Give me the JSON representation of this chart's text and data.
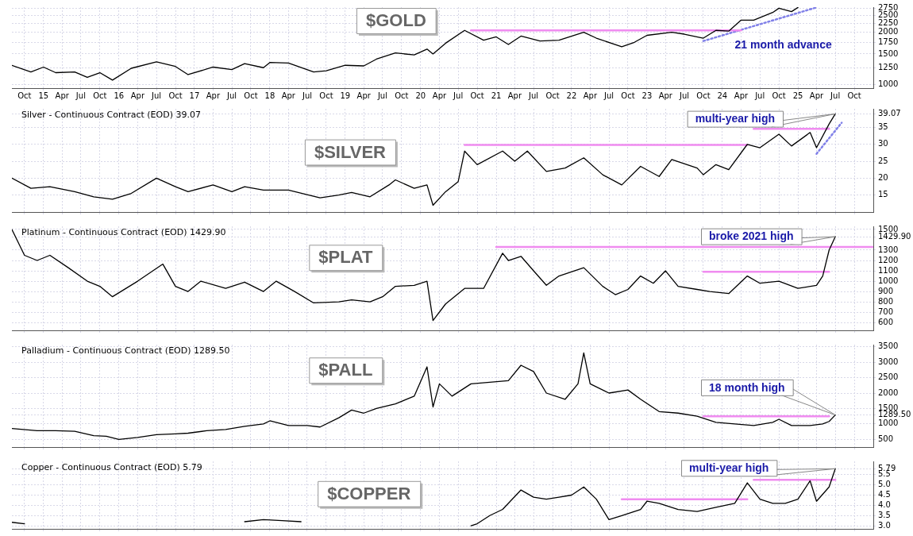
{
  "chart_data": [
    {
      "type": "line",
      "marker": "none",
      "grid": true,
      "log": true,
      "xlim": [
        "2014-08",
        "2026-01"
      ],
      "ylim": [
        953,
        2790
      ],
      "yticks": [
        1000,
        1250,
        1500,
        1750,
        2000,
        2250,
        2500,
        2750
      ],
      "xticks": [
        {
          "value": "2014-10",
          "label": "Oct"
        },
        {
          "value": "2015-01",
          "label": "15"
        },
        {
          "value": "2015-04",
          "label": "Apr"
        },
        {
          "value": "2015-07",
          "label": "Jul"
        },
        {
          "value": "2015-10",
          "label": "Oct"
        },
        {
          "value": "2016-01",
          "label": "16"
        },
        {
          "value": "2016-04",
          "label": "Apr"
        },
        {
          "value": "2016-07",
          "label": "Jul"
        },
        {
          "value": "2016-10",
          "label": "Oct"
        },
        {
          "value": "2017-01",
          "label": "17"
        },
        {
          "value": "2017-04",
          "label": "Apr"
        },
        {
          "value": "2017-07",
          "label": "Jul"
        },
        {
          "value": "2017-10",
          "label": "Oct"
        },
        {
          "value": "2018-01",
          "label": "18"
        },
        {
          "value": "2018-04",
          "label": "Apr"
        },
        {
          "value": "2018-07",
          "label": "Jul"
        },
        {
          "value": "2018-10",
          "label": "Oct"
        },
        {
          "value": "2019-01",
          "label": "19"
        },
        {
          "value": "2019-04",
          "label": "Apr"
        },
        {
          "value": "2019-07",
          "label": "Jul"
        },
        {
          "value": "2019-10",
          "label": "Oct"
        },
        {
          "value": "2020-01",
          "label": "20"
        },
        {
          "value": "2020-04",
          "label": "Apr"
        },
        {
          "value": "2020-07",
          "label": "Jul"
        },
        {
          "value": "2020-10",
          "label": "Oct"
        },
        {
          "value": "2021-01",
          "label": "21"
        },
        {
          "value": "2021-04",
          "label": "Apr"
        },
        {
          "value": "2021-07",
          "label": "Jul"
        },
        {
          "value": "2021-10",
          "label": "Oct"
        },
        {
          "value": "2022-01",
          "label": "22"
        },
        {
          "value": "2022-04",
          "label": "Apr"
        },
        {
          "value": "2022-07",
          "label": "Jul"
        },
        {
          "value": "2022-10",
          "label": "Oct"
        },
        {
          "value": "2023-01",
          "label": "23"
        },
        {
          "value": "2023-04",
          "label": "Apr"
        },
        {
          "value": "2023-07",
          "label": "Jul"
        },
        {
          "value": "2023-10",
          "label": "Oct"
        },
        {
          "value": "2024-01",
          "label": "24"
        },
        {
          "value": "2024-04",
          "label": "Apr"
        },
        {
          "value": "2024-07",
          "label": "Jul"
        },
        {
          "value": "2024-10",
          "label": "Oct"
        },
        {
          "value": "2025-01",
          "label": "25"
        },
        {
          "value": "2025-04",
          "label": "Apr"
        },
        {
          "value": "2025-07",
          "label": "Jul"
        },
        {
          "value": "2025-10",
          "label": "Oct"
        }
      ],
      "annotations": [
        "$GOLD",
        "21 month advance"
      ],
      "series": [
        {
          "color": "#000000",
          "x": [
            "2014-08",
            "2014-11",
            "2015-01",
            "2015-03",
            "2015-06",
            "2015-08",
            "2015-10",
            "2015-12",
            "2016-03",
            "2016-07",
            "2016-10",
            "2016-12",
            "2017-04",
            "2017-07",
            "2017-09",
            "2017-12",
            "2018-01",
            "2018-04",
            "2018-08",
            "2018-10",
            "2019-01",
            "2019-04",
            "2019-06",
            "2019-09",
            "2019-12",
            "2020-02",
            "2020-03",
            "2020-05",
            "2020-08",
            "2020-11",
            "2021-01",
            "2021-03",
            "2021-05",
            "2021-08",
            "2021-11",
            "2022-03",
            "2022-05",
            "2022-09",
            "2022-11",
            "2023-01",
            "2023-05",
            "2023-07",
            "2023-10",
            "2023-12",
            "2024-02",
            "2024-04",
            "2024-06",
            "2024-09",
            "2024-10",
            "2024-12",
            "2025-01"
          ],
          "values": [
            1290,
            1180,
            1260,
            1170,
            1180,
            1100,
            1170,
            1060,
            1240,
            1350,
            1270,
            1140,
            1260,
            1220,
            1320,
            1250,
            1340,
            1330,
            1180,
            1200,
            1290,
            1280,
            1400,
            1520,
            1480,
            1600,
            1500,
            1730,
            2050,
            1800,
            1880,
            1700,
            1900,
            1780,
            1800,
            2000,
            1850,
            1650,
            1750,
            1920,
            2000,
            1950,
            1850,
            2050,
            2030,
            2350,
            2350,
            2600,
            2750,
            2630,
            2780
          ]
        },
        {
          "color": "#f08cf0",
          "x": [
            "2020-09",
            "2024-04"
          ],
          "values": [
            2050,
            2050
          ]
        },
        {
          "color": "#8080e8",
          "line_style": "dotted",
          "x": [
            "2023-10",
            "2025-04"
          ],
          "values": [
            1780,
            2780
          ]
        }
      ]
    },
    {
      "type": "line",
      "marker": "none",
      "grid": true,
      "tick_labels": "y",
      "subtitle": "Silver - Continuous Contract (EOD) 39.07",
      "xlim": [
        "2014-08",
        "2026-01"
      ],
      "ylim": [
        10,
        40.5
      ],
      "yticks": [
        15,
        20,
        25,
        30,
        35,
        39.07
      ],
      "xticks": [
        {
          "value": "2014-10",
          "label": null
        },
        {
          "value": "2015-01",
          "label": null
        },
        {
          "value": "2015-04",
          "label": null
        },
        {
          "value": "2015-07",
          "label": null
        },
        {
          "value": "2015-10",
          "label": null
        },
        {
          "value": "2016-01",
          "label": null
        },
        {
          "value": "2016-04",
          "label": null
        },
        {
          "value": "2016-07",
          "label": null
        },
        {
          "value": "2016-10",
          "label": null
        },
        {
          "value": "2017-01",
          "label": null
        },
        {
          "value": "2017-04",
          "label": null
        },
        {
          "value": "2017-07",
          "label": null
        },
        {
          "value": "2017-10",
          "label": null
        },
        {
          "value": "2018-01",
          "label": null
        },
        {
          "value": "2018-04",
          "label": null
        },
        {
          "value": "2018-07",
          "label": null
        },
        {
          "value": "2018-10",
          "label": null
        },
        {
          "value": "2019-01",
          "label": null
        },
        {
          "value": "2019-04",
          "label": null
        },
        {
          "value": "2019-07",
          "label": null
        },
        {
          "value": "2019-10",
          "label": null
        },
        {
          "value": "2020-01",
          "label": null
        },
        {
          "value": "2020-04",
          "label": null
        },
        {
          "value": "2020-07",
          "label": null
        },
        {
          "value": "2020-10",
          "label": null
        },
        {
          "value": "2021-01",
          "label": null
        },
        {
          "value": "2021-04",
          "label": null
        },
        {
          "value": "2021-07",
          "label": null
        },
        {
          "value": "2021-10",
          "label": null
        },
        {
          "value": "2022-01",
          "label": null
        },
        {
          "value": "2022-04",
          "label": null
        },
        {
          "value": "2022-07",
          "label": null
        },
        {
          "value": "2022-10",
          "label": null
        },
        {
          "value": "2023-01",
          "label": null
        },
        {
          "value": "2023-04",
          "label": null
        },
        {
          "value": "2023-07",
          "label": null
        },
        {
          "value": "2023-10",
          "label": null
        },
        {
          "value": "2024-01",
          "label": null
        },
        {
          "value": "2024-04",
          "label": null
        },
        {
          "value": "2024-07",
          "label": null
        },
        {
          "value": "2024-10",
          "label": null
        },
        {
          "value": "2025-01",
          "label": null
        },
        {
          "value": "2025-04",
          "label": null
        },
        {
          "value": "2025-07",
          "label": null
        },
        {
          "value": "2025-10",
          "label": null
        }
      ],
      "annotations": [
        "$SILVER",
        "multi-year high"
      ],
      "series": [
        {
          "color": "#000000",
          "x": [
            "2014-08",
            "2014-11",
            "2015-02",
            "2015-06",
            "2015-09",
            "2015-12",
            "2016-03",
            "2016-07",
            "2016-10",
            "2016-12",
            "2017-04",
            "2017-07",
            "2017-09",
            "2017-12",
            "2018-04",
            "2018-09",
            "2018-12",
            "2019-02",
            "2019-05",
            "2019-08",
            "2019-09",
            "2019-12",
            "2020-02",
            "2020-03",
            "2020-05",
            "2020-07",
            "2020-08",
            "2020-10",
            "2021-02",
            "2021-04",
            "2021-06",
            "2021-09",
            "2021-12",
            "2022-03",
            "2022-06",
            "2022-09",
            "2022-12",
            "2023-03",
            "2023-05",
            "2023-09",
            "2023-10",
            "2023-12",
            "2024-02",
            "2024-05",
            "2024-07",
            "2024-10",
            "2024-12",
            "2025-03",
            "2025-04",
            "2025-06",
            "2025-07"
          ],
          "values": [
            20,
            17,
            17.5,
            16,
            14.5,
            13.8,
            15.5,
            20,
            17.5,
            16,
            18,
            16,
            17.5,
            16.5,
            16.5,
            14.2,
            15,
            15.8,
            14.5,
            18,
            19.5,
            17,
            18,
            12,
            16,
            19,
            28,
            24,
            28,
            25,
            28,
            22,
            23,
            26,
            21,
            18,
            23.5,
            20.5,
            25.5,
            23,
            21,
            24,
            22.5,
            30,
            29,
            33,
            29.5,
            33.5,
            29,
            36,
            39
          ]
        },
        {
          "color": "#f08cf0",
          "x": [
            "2020-08",
            "2024-05"
          ],
          "values": [
            29.8,
            29.8
          ]
        },
        {
          "color": "#f08cf0",
          "x": [
            "2024-06",
            "2025-06"
          ],
          "values": [
            34.6,
            34.6
          ]
        },
        {
          "color": "#8080e8",
          "line_style": "dotted",
          "x": [
            "2025-04",
            "2025-08"
          ],
          "values": [
            27.2,
            36.4
          ]
        }
      ]
    },
    {
      "type": "line",
      "marker": "none",
      "grid": true,
      "tick_labels": "y",
      "subtitle": "Platinum - Continuous Contract (EOD) 1429.90",
      "xlim": [
        "2014-08",
        "2026-01"
      ],
      "ylim": [
        525,
        1530
      ],
      "yticks": [
        600,
        700,
        800,
        900,
        1000,
        1100,
        1200,
        1300,
        {
          "value": 1429.9,
          "label": "1429.90"
        },
        1500
      ],
      "xticks": [
        {
          "value": "2014-10",
          "label": null
        },
        {
          "value": "2015-01",
          "label": null
        },
        {
          "value": "2015-04",
          "label": null
        },
        {
          "value": "2015-07",
          "label": null
        },
        {
          "value": "2015-10",
          "label": null
        },
        {
          "value": "2016-01",
          "label": null
        },
        {
          "value": "2016-04",
          "label": null
        },
        {
          "value": "2016-07",
          "label": null
        },
        {
          "value": "2016-10",
          "label": null
        },
        {
          "value": "2017-01",
          "label": null
        },
        {
          "value": "2017-04",
          "label": null
        },
        {
          "value": "2017-07",
          "label": null
        },
        {
          "value": "2017-10",
          "label": null
        },
        {
          "value": "2018-01",
          "label": null
        },
        {
          "value": "2018-04",
          "label": null
        },
        {
          "value": "2018-07",
          "label": null
        },
        {
          "value": "2018-10",
          "label": null
        },
        {
          "value": "2019-01",
          "label": null
        },
        {
          "value": "2019-04",
          "label": null
        },
        {
          "value": "2019-07",
          "label": null
        },
        {
          "value": "2019-10",
          "label": null
        },
        {
          "value": "2020-01",
          "label": null
        },
        {
          "value": "2020-04",
          "label": null
        },
        {
          "value": "2020-07",
          "label": null
        },
        {
          "value": "2020-10",
          "label": null
        },
        {
          "value": "2021-01",
          "label": null
        },
        {
          "value": "2021-04",
          "label": null
        },
        {
          "value": "2021-07",
          "label": null
        },
        {
          "value": "2021-10",
          "label": null
        },
        {
          "value": "2022-01",
          "label": null
        },
        {
          "value": "2022-04",
          "label": null
        },
        {
          "value": "2022-07",
          "label": null
        },
        {
          "value": "2022-10",
          "label": null
        },
        {
          "value": "2023-01",
          "label": null
        },
        {
          "value": "2023-04",
          "label": null
        },
        {
          "value": "2023-07",
          "label": null
        },
        {
          "value": "2023-10",
          "label": null
        },
        {
          "value": "2024-01",
          "label": null
        },
        {
          "value": "2024-04",
          "label": null
        },
        {
          "value": "2024-07",
          "label": null
        },
        {
          "value": "2024-10",
          "label": null
        },
        {
          "value": "2025-01",
          "label": null
        },
        {
          "value": "2025-04",
          "label": null
        },
        {
          "value": "2025-07",
          "label": null
        },
        {
          "value": "2025-10",
          "label": null
        }
      ],
      "annotations": [
        "$PLAT",
        "broke 2021 high"
      ],
      "series": [
        {
          "color": "#000000",
          "x": [
            "2014-08",
            "2014-10",
            "2014-12",
            "2015-02",
            "2015-05",
            "2015-08",
            "2015-10",
            "2015-12",
            "2016-04",
            "2016-08",
            "2016-10",
            "2016-12",
            "2017-02",
            "2017-06",
            "2017-09",
            "2017-12",
            "2018-02",
            "2018-05",
            "2018-08",
            "2018-12",
            "2019-02",
            "2019-05",
            "2019-07",
            "2019-09",
            "2019-12",
            "2020-02",
            "2020-03",
            "2020-05",
            "2020-08",
            "2020-11",
            "2021-02",
            "2021-03",
            "2021-05",
            "2021-07",
            "2021-09",
            "2021-11",
            "2022-03",
            "2022-06",
            "2022-08",
            "2022-10",
            "2022-12",
            "2023-02",
            "2023-04",
            "2023-06",
            "2023-09",
            "2023-11",
            "2024-02",
            "2024-05",
            "2024-07",
            "2024-10",
            "2025-01",
            "2025-04",
            "2025-05",
            "2025-06",
            "2025-07"
          ],
          "values": [
            1500,
            1250,
            1200,
            1250,
            1130,
            1000,
            950,
            850,
            1000,
            1165,
            950,
            900,
            1000,
            930,
            990,
            900,
            1000,
            900,
            790,
            800,
            820,
            800,
            850,
            950,
            960,
            1000,
            620,
            780,
            930,
            930,
            1270,
            1200,
            1240,
            1100,
            960,
            1050,
            1130,
            950,
            870,
            920,
            1050,
            980,
            1100,
            950,
            920,
            900,
            880,
            1050,
            980,
            1000,
            930,
            960,
            1050,
            1300,
            1430
          ]
        },
        {
          "color": "#f08cf0",
          "x": [
            "2021-01",
            "2026-01"
          ],
          "values": [
            1330,
            1330
          ]
        },
        {
          "color": "#f08cf0",
          "x": [
            "2023-10",
            "2025-06"
          ],
          "values": [
            1090,
            1090
          ]
        }
      ]
    },
    {
      "type": "line",
      "marker": "none",
      "grid": true,
      "tick_labels": "y",
      "subtitle": "Palladium - Continuous Contract (EOD) 1289.50",
      "xlim": [
        "2014-08",
        "2026-01"
      ],
      "ylim": [
        250,
        3570
      ],
      "yticks": [
        500,
        1000,
        {
          "value": 1289.5,
          "label": "1289.50"
        },
        1500,
        2000,
        2500,
        3000,
        3500
      ],
      "xticks": [
        {
          "value": "2014-10",
          "label": null
        },
        {
          "value": "2015-01",
          "label": null
        },
        {
          "value": "2015-04",
          "label": null
        },
        {
          "value": "2015-07",
          "label": null
        },
        {
          "value": "2015-10",
          "label": null
        },
        {
          "value": "2016-01",
          "label": null
        },
        {
          "value": "2016-04",
          "label": null
        },
        {
          "value": "2016-07",
          "label": null
        },
        {
          "value": "2016-10",
          "label": null
        },
        {
          "value": "2017-01",
          "label": null
        },
        {
          "value": "2017-04",
          "label": null
        },
        {
          "value": "2017-07",
          "label": null
        },
        {
          "value": "2017-10",
          "label": null
        },
        {
          "value": "2018-01",
          "label": null
        },
        {
          "value": "2018-04",
          "label": null
        },
        {
          "value": "2018-07",
          "label": null
        },
        {
          "value": "2018-10",
          "label": null
        },
        {
          "value": "2019-01",
          "label": null
        },
        {
          "value": "2019-04",
          "label": null
        },
        {
          "value": "2019-07",
          "label": null
        },
        {
          "value": "2019-10",
          "label": null
        },
        {
          "value": "2020-01",
          "label": null
        },
        {
          "value": "2020-04",
          "label": null
        },
        {
          "value": "2020-07",
          "label": null
        },
        {
          "value": "2020-10",
          "label": null
        },
        {
          "value": "2021-01",
          "label": null
        },
        {
          "value": "2021-04",
          "label": null
        },
        {
          "value": "2021-07",
          "label": null
        },
        {
          "value": "2021-10",
          "label": null
        },
        {
          "value": "2022-01",
          "label": null
        },
        {
          "value": "2022-04",
          "label": null
        },
        {
          "value": "2022-07",
          "label": null
        },
        {
          "value": "2022-10",
          "label": null
        },
        {
          "value": "2023-01",
          "label": null
        },
        {
          "value": "2023-04",
          "label": null
        },
        {
          "value": "2023-07",
          "label": null
        },
        {
          "value": "2023-10",
          "label": null
        },
        {
          "value": "2024-01",
          "label": null
        },
        {
          "value": "2024-04",
          "label": null
        },
        {
          "value": "2024-07",
          "label": null
        },
        {
          "value": "2024-10",
          "label": null
        },
        {
          "value": "2025-01",
          "label": null
        },
        {
          "value": "2025-04",
          "label": null
        },
        {
          "value": "2025-07",
          "label": null
        },
        {
          "value": "2025-10",
          "label": null
        }
      ],
      "annotations": [
        "$PALL",
        "18 month high"
      ],
      "series": [
        {
          "color": "#000000",
          "x": [
            "2014-08",
            "2014-12",
            "2015-03",
            "2015-06",
            "2015-09",
            "2015-11",
            "2016-01",
            "2016-04",
            "2016-07",
            "2016-10",
            "2016-12",
            "2017-03",
            "2017-06",
            "2017-09",
            "2017-12",
            "2018-01",
            "2018-04",
            "2018-07",
            "2018-09",
            "2018-12",
            "2019-02",
            "2019-04",
            "2019-06",
            "2019-09",
            "2019-12",
            "2020-02",
            "2020-03",
            "2020-04",
            "2020-06",
            "2020-09",
            "2020-12",
            "2021-03",
            "2021-05",
            "2021-07",
            "2021-09",
            "2021-12",
            "2022-02",
            "2022-03",
            "2022-04",
            "2022-07",
            "2022-10",
            "2022-12",
            "2023-03",
            "2023-06",
            "2023-09",
            "2023-12",
            "2024-03",
            "2024-06",
            "2024-09",
            "2024-10",
            "2024-12",
            "2025-03",
            "2025-05",
            "2025-06",
            "2025-07"
          ],
          "values": [
            850,
            780,
            780,
            760,
            620,
            600,
            500,
            560,
            650,
            680,
            700,
            780,
            820,
            920,
            1000,
            1100,
            950,
            950,
            900,
            1200,
            1450,
            1350,
            1500,
            1650,
            1900,
            2850,
            1550,
            2300,
            1900,
            2300,
            2350,
            2400,
            2900,
            2700,
            2000,
            1800,
            2300,
            3300,
            2300,
            2000,
            2100,
            1800,
            1400,
            1350,
            1250,
            1050,
            1000,
            950,
            1050,
            1150,
            950,
            950,
            1000,
            1080,
            1290
          ]
        },
        {
          "color": "#f08cf0",
          "x": [
            "2023-10",
            "2025-06"
          ],
          "values": [
            1250,
            1250
          ]
        }
      ]
    },
    {
      "type": "line",
      "marker": "none",
      "grid": true,
      "tick_labels": "y",
      "subtitle": "Copper - Continuous Contract (EOD) 5.79",
      "xlim": [
        "2014-08",
        "2026-01"
      ],
      "ylim": [
        2.85,
        6.15
      ],
      "yticks": [
        {
          "value": 3,
          "label": "3.0"
        },
        {
          "value": 3.5,
          "label": "3.5"
        },
        {
          "value": 4,
          "label": "4.0"
        },
        {
          "value": 4.5,
          "label": "4.5"
        },
        {
          "value": 5,
          "label": "5.0"
        },
        {
          "value": 5.5,
          "label": "5.5"
        },
        5.79
      ],
      "xticks": [
        {
          "value": "2014-10",
          "label": null
        },
        {
          "value": "2015-01",
          "label": null
        },
        {
          "value": "2015-04",
          "label": null
        },
        {
          "value": "2015-07",
          "label": null
        },
        {
          "value": "2015-10",
          "label": null
        },
        {
          "value": "2016-01",
          "label": null
        },
        {
          "value": "2016-04",
          "label": null
        },
        {
          "value": "2016-07",
          "label": null
        },
        {
          "value": "2016-10",
          "label": null
        },
        {
          "value": "2017-01",
          "label": null
        },
        {
          "value": "2017-04",
          "label": null
        },
        {
          "value": "2017-07",
          "label": null
        },
        {
          "value": "2017-10",
          "label": null
        },
        {
          "value": "2018-01",
          "label": null
        },
        {
          "value": "2018-04",
          "label": null
        },
        {
          "value": "2018-07",
          "label": null
        },
        {
          "value": "2018-10",
          "label": null
        },
        {
          "value": "2019-01",
          "label": null
        },
        {
          "value": "2019-04",
          "label": null
        },
        {
          "value": "2019-07",
          "label": null
        },
        {
          "value": "2019-10",
          "label": null
        },
        {
          "value": "2020-01",
          "label": null
        },
        {
          "value": "2020-04",
          "label": null
        },
        {
          "value": "2020-07",
          "label": null
        },
        {
          "value": "2020-10",
          "label": null
        },
        {
          "value": "2021-01",
          "label": null
        },
        {
          "value": "2021-04",
          "label": null
        },
        {
          "value": "2021-07",
          "label": null
        },
        {
          "value": "2021-10",
          "label": null
        },
        {
          "value": "2022-01",
          "label": null
        },
        {
          "value": "2022-04",
          "label": null
        },
        {
          "value": "2022-07",
          "label": null
        },
        {
          "value": "2022-10",
          "label": null
        },
        {
          "value": "2023-01",
          "label": null
        },
        {
          "value": "2023-04",
          "label": null
        },
        {
          "value": "2023-07",
          "label": null
        },
        {
          "value": "2023-10",
          "label": null
        },
        {
          "value": "2024-01",
          "label": null
        },
        {
          "value": "2024-04",
          "label": null
        },
        {
          "value": "2024-07",
          "label": null
        },
        {
          "value": "2024-10",
          "label": null
        },
        {
          "value": "2025-01",
          "label": null
        },
        {
          "value": "2025-04",
          "label": null
        },
        {
          "value": "2025-07",
          "label": null
        },
        {
          "value": "2025-10",
          "label": null
        }
      ],
      "annotations": [
        "$COPPER",
        "multi-year high"
      ],
      "series": [
        {
          "color": "#000000",
          "x": [
            "2014-08",
            "2014-10",
            "2014-11",
            "2017-09",
            "2017-12",
            "2018-03",
            "2018-06",
            "2018-07",
            "2020-09",
            "2020-10",
            "2020-12",
            "2021-02",
            "2021-05",
            "2021-07",
            "2021-09",
            "2021-11",
            "2022-01",
            "2022-03",
            "2022-05",
            "2022-07",
            "2022-09",
            "2022-12",
            "2023-01",
            "2023-03",
            "2023-06",
            "2023-09",
            "2023-12",
            "2024-03",
            "2024-05",
            "2024-07",
            "2024-09",
            "2024-11",
            "2025-01",
            "2025-03",
            "2025-04",
            "2025-06",
            "2025-07"
          ],
          "values": [
            3.17,
            3.1,
            null,
            3.2,
            3.3,
            3.25,
            3.2,
            null,
            3.0,
            3.1,
            3.5,
            3.8,
            4.75,
            4.4,
            4.3,
            4.4,
            4.5,
            4.9,
            4.3,
            3.3,
            3.5,
            3.8,
            4.2,
            4.1,
            3.8,
            3.7,
            3.9,
            4.1,
            5.1,
            4.3,
            4.1,
            4.1,
            4.3,
            5.2,
            4.2,
            4.9,
            5.79
          ]
        },
        {
          "color": "#f08cf0",
          "x": [
            "2022-09",
            "2024-05"
          ],
          "values": [
            4.3,
            4.3
          ]
        },
        {
          "color": "#f08cf0",
          "x": [
            "2024-06",
            "2025-07"
          ],
          "values": [
            5.25,
            5.25
          ]
        }
      ]
    }
  ]
}
